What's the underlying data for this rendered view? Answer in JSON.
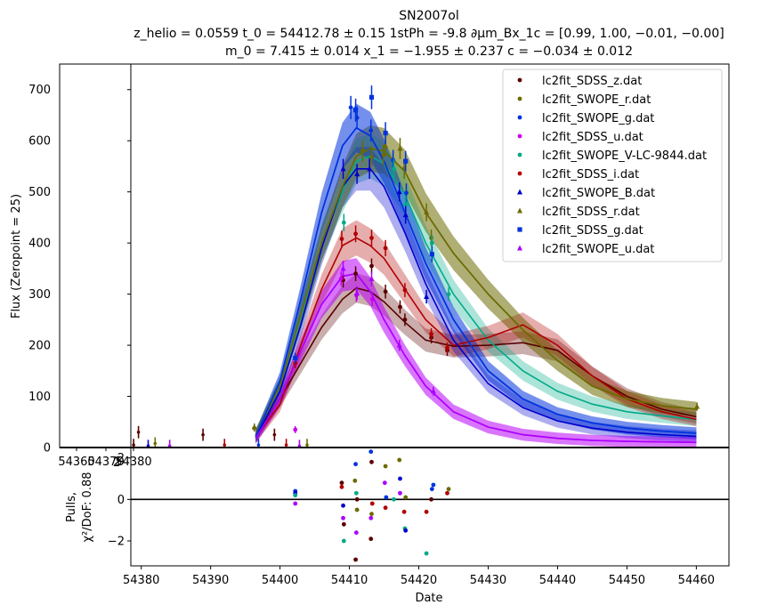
{
  "chart_data": [
    {
      "type": "line",
      "title": "SN2007ol",
      "subtitle_line1": "z_helio = 0.0559 t_0 = 54412.78 ± 0.15 1stPh = -9.8 ∂μm_Bx_1c = [0.99,  1.00,  −0.01,  −0.00]",
      "subtitle_line2": "m_0 = 7.415 ± 0.014 x_1 = −1.955 ± 0.237 c = −0.034 ± 0.012",
      "ylabel": "Flux (Zeropoint = 25)",
      "xlim": [
        54378.5,
        54464.7
      ],
      "ylim": [
        0,
        750
      ],
      "yticks": [
        0,
        100,
        200,
        300,
        400,
        500,
        600,
        700
      ],
      "grid": false,
      "legend_position": "top-right",
      "overlapping_inset_xticks": [
        "54360",
        "54370",
        "54380"
      ],
      "series": [
        {
          "name": "lc2fit_SDSS_z.dat",
          "color": "#5a0000",
          "marker": "circle",
          "x": [
            54409.1,
            54410.9,
            54413.2,
            54415.2,
            54417.3,
            54418.0,
            54421.8,
            54424.1
          ],
          "y": [
            327,
            340,
            355,
            305,
            275,
            250,
            215,
            190
          ],
          "model_x": [
            54396.5,
            54400,
            54403,
            54406,
            54409,
            54411,
            54413,
            54415,
            54418,
            54421,
            54425,
            54430,
            54435,
            54440,
            54445,
            54450,
            54455,
            54460
          ],
          "model_y": [
            22,
            95,
            165,
            235,
            290,
            312,
            305,
            285,
            245,
            210,
            198,
            200,
            205,
            190,
            140,
            100,
            75,
            60
          ]
        },
        {
          "name": "lc2fit_SWOPE_r.dat",
          "color": "#6b6b00",
          "marker": "circle",
          "x": [
            54396.3,
            54411.9,
            54414.9,
            54417.9,
            54421.8
          ],
          "y": [
            38,
            580,
            572,
            545,
            410
          ],
          "model_x": [
            54396.5,
            54400,
            54403,
            54406,
            54409,
            54411,
            54413,
            54415,
            54418,
            54421,
            54425,
            54430,
            54435,
            54440,
            54445,
            54450,
            54455,
            54460
          ],
          "model_y": [
            25,
            120,
            260,
            400,
            510,
            570,
            585,
            580,
            540,
            460,
            380,
            300,
            230,
            170,
            120,
            95,
            82,
            75
          ]
        },
        {
          "name": "lc2fit_SWOPE_g.dat",
          "color": "#0033dd",
          "marker": "circle",
          "x": [
            54410.2,
            54411.1,
            54413.1,
            54416.3,
            54418.2
          ],
          "y": [
            665,
            645,
            620,
            562,
            498
          ],
          "model_x": [
            54396.5,
            54400,
            54403,
            54406,
            54409,
            54411,
            54413,
            54415,
            54418,
            54421,
            54425,
            54430,
            54435,
            54440,
            54445,
            54450,
            54455,
            54460
          ],
          "model_y": [
            22,
            130,
            290,
            460,
            590,
            625,
            610,
            560,
            460,
            360,
            250,
            150,
            95,
            65,
            48,
            38,
            32,
            28
          ]
        },
        {
          "name": "lc2fit_SDSS_u.dat",
          "color": "#cc00ee",
          "marker": "circle",
          "x": [
            54402.2,
            54408.8,
            54411.0,
            54413.3
          ],
          "y": [
            35,
            330,
            298,
            290
          ],
          "model_x": [
            54396.5,
            54400,
            54403,
            54406,
            54409,
            54411,
            54413,
            54415,
            54418,
            54421,
            54425,
            54430,
            54435,
            54440,
            54445,
            54450,
            54455,
            54460
          ],
          "model_y": [
            18,
            95,
            190,
            280,
            335,
            340,
            305,
            250,
            180,
            120,
            70,
            40,
            25,
            18,
            14,
            12,
            11,
            10
          ]
        },
        {
          "name": "lc2fit_SWOPE_V-LC-9844.dat",
          "color": "#00aa88",
          "marker": "circle",
          "x": [
            54409.2,
            54416.4,
            54418.1,
            54421.9,
            54424.3
          ],
          "y": [
            440,
            545,
            475,
            400,
            300
          ],
          "model_x": [
            54396.5,
            54400,
            54403,
            54406,
            54409,
            54411,
            54413,
            54415,
            54418,
            54421,
            54425,
            54430,
            54435,
            54440,
            54445,
            54450,
            54455,
            54460
          ],
          "model_y": [
            24,
            120,
            255,
            400,
            500,
            560,
            570,
            555,
            495,
            400,
            300,
            210,
            150,
            110,
            85,
            70,
            62,
            55
          ]
        },
        {
          "name": "lc2fit_SDSS_i.dat",
          "color": "#b00000",
          "marker": "circle",
          "x": [
            54402.2,
            54408.9,
            54410.9,
            54413.2,
            54415.2,
            54418.0,
            54421.8,
            54424.1
          ],
          "y": [
            165,
            408,
            418,
            410,
            390,
            308,
            222,
            195
          ],
          "model_x": [
            54396.5,
            54400,
            54403,
            54406,
            54409,
            54411,
            54413,
            54415,
            54418,
            54421,
            54425,
            54430,
            54435,
            54440,
            54445,
            54450,
            54455,
            54460
          ],
          "model_y": [
            20,
            85,
            200,
            310,
            395,
            410,
            395,
            370,
            310,
            250,
            200,
            215,
            240,
            200,
            140,
            95,
            70,
            55
          ]
        },
        {
          "name": "lc2fit_SWOPE_B.dat",
          "color": "#0000cc",
          "marker": "triangle",
          "x": [
            54409.1,
            54411.1,
            54412.9,
            54417.2,
            54418.1,
            54421.1
          ],
          "y": [
            545,
            535,
            545,
            500,
            455,
            295
          ],
          "model_x": [
            54396.5,
            54400,
            54403,
            54406,
            54409,
            54411,
            54413,
            54415,
            54418,
            54421,
            54425,
            54430,
            54435,
            54440,
            54445,
            54450,
            54455,
            54460
          ],
          "model_y": [
            20,
            110,
            240,
            390,
            510,
            545,
            545,
            510,
            420,
            320,
            210,
            125,
            78,
            52,
            38,
            30,
            25,
            22
          ]
        },
        {
          "name": "lc2fit_SDSS_r.dat",
          "color": "#6b6b00",
          "marker": "triangle",
          "x": [
            54396.3,
            54413.2,
            54415.2,
            54417.3,
            54421.1,
            54460.1
          ],
          "y": [
            40,
            570,
            590,
            585,
            460,
            80
          ],
          "model_x": [
            54396.5,
            54400,
            54403,
            54406,
            54409,
            54411,
            54413,
            54415,
            54418,
            54421,
            54425,
            54430,
            54435,
            54440,
            54445,
            54450,
            54455,
            54460
          ],
          "model_y": [
            25,
            120,
            260,
            400,
            510,
            570,
            585,
            580,
            540,
            460,
            380,
            300,
            230,
            170,
            120,
            95,
            82,
            75
          ]
        },
        {
          "name": "lc2fit_SDSS_g.dat",
          "color": "#0033dd",
          "marker": "square",
          "x": [
            54402.2,
            54410.9,
            54413.2,
            54415.2,
            54418.1,
            54421.9
          ],
          "y": [
            175,
            660,
            685,
            615,
            560,
            378
          ],
          "model_x": [
            54396.5,
            54400,
            54403,
            54406,
            54409,
            54411,
            54413,
            54415,
            54418,
            54421,
            54425,
            54430,
            54435,
            54440,
            54445,
            54450,
            54455,
            54460
          ],
          "model_y": [
            22,
            130,
            290,
            460,
            590,
            625,
            610,
            560,
            460,
            360,
            250,
            150,
            95,
            65,
            48,
            38,
            32,
            28
          ]
        },
        {
          "name": "lc2fit_SWOPE_u.dat",
          "color": "#aa00ff",
          "marker": "triangle",
          "x": [
            54409.1,
            54411.1,
            54413.2,
            54417.2,
            54422.1
          ],
          "y": [
            350,
            302,
            330,
            200,
            110
          ],
          "model_x": [
            54396.5,
            54400,
            54403,
            54406,
            54409,
            54411,
            54413,
            54415,
            54418,
            54421,
            54425,
            54430,
            54435,
            54440,
            54445,
            54450,
            54455,
            54460
          ],
          "model_y": [
            18,
            95,
            190,
            280,
            335,
            340,
            305,
            250,
            180,
            120,
            70,
            40,
            25,
            18,
            14,
            12,
            11,
            10
          ]
        }
      ],
      "inset_points": {
        "x": [
          54378.9,
          54379.6,
          54381.0,
          54382.0,
          54384.1,
          54388.9,
          54392.0,
          54396.9,
          54399.2,
          54400.9,
          54402.8,
          54403.9
        ],
        "y": [
          5,
          30,
          3,
          8,
          3,
          25,
          5,
          5,
          25,
          5,
          3,
          5
        ],
        "colors": [
          "#5a0000",
          "#5a0000",
          "#0000cc",
          "#6b6b00",
          "#aa00ff",
          "#5a0000",
          "#b00000",
          "#0033dd",
          "#5a0000",
          "#b00000",
          "#aa00ff",
          "#6b6b00"
        ]
      }
    },
    {
      "type": "scatter",
      "xlabel": "Date",
      "ylabel_line1": "Pulls,",
      "ylabel_line2": "χ²/DoF: 0.88",
      "xlim": [
        54378.5,
        54464.7
      ],
      "ylim": [
        -3.2,
        2.5
      ],
      "yticks": [
        -2,
        0,
        2
      ],
      "xticks": [
        54380,
        54390,
        54400,
        54410,
        54420,
        54430,
        54440,
        54450,
        54460
      ],
      "xtick_labels": [
        "54380",
        "54390",
        "54400",
        "54410",
        "54420",
        "54430",
        "54440",
        "54450",
        "54460"
      ],
      "overlapping_tick_label": "2",
      "hline": 0,
      "points": {
        "x": [
          54402.2,
          54402.2,
          54402.2,
          54402.2,
          54408.9,
          54408.9,
          54409.1,
          54409.1,
          54409.2,
          54409.2,
          54410.8,
          54410.9,
          54411.0,
          54411.0,
          54411.1,
          54411.1,
          54413.1,
          54413.2,
          54413.2,
          54413.3,
          54413.1,
          54415.1,
          54415.2,
          54415.2,
          54415.3,
          54416.4,
          54417.2,
          54417.3,
          54417.3,
          54417.9,
          54418.0,
          54418.1,
          54418.1,
          54421.1,
          54421.1,
          54421.8,
          54421.9,
          54422.1,
          54424.1,
          54424.3,
          54413.1,
          54410.9
        ],
        "y": [
          0.4,
          0.3,
          -0.2,
          0.2,
          0.8,
          0.6,
          -0.3,
          -0.9,
          -2.0,
          -1.2,
          0.9,
          1.7,
          -1.6,
          0.3,
          0.0,
          -0.5,
          2.3,
          1.8,
          -0.7,
          -0.2,
          -1.9,
          0.8,
          1.6,
          -0.4,
          0.1,
          0.0,
          1.9,
          1.0,
          0.3,
          -0.6,
          -1.4,
          -1.5,
          0.1,
          -0.6,
          -2.6,
          0.0,
          0.5,
          0.7,
          0.3,
          0.5,
          -0.9,
          -2.9
        ],
        "colors": [
          "#0033dd",
          "#0000cc",
          "#aa00ff",
          "#00aa88",
          "#5a0000",
          "#b00000",
          "#0000cc",
          "#aa00ff",
          "#00aa88",
          "#5a0000",
          "#6b6b00",
          "#0033dd",
          "#aa00ff",
          "#00aa88",
          "#5a0000",
          "#6b6b00",
          "#0033dd",
          "#5a0000",
          "#6b6b00",
          "#b00000",
          "#5a0000",
          "#aa00ff",
          "#6b6b00",
          "#b00000",
          "#0033dd",
          "#00aa88",
          "#6b6b00",
          "#0000cc",
          "#aa00ff",
          "#b00000",
          "#00aa88",
          "#0000cc",
          "#6b6b00",
          "#b00000",
          "#00aa88",
          "#5a0000",
          "#0033dd",
          "#0033dd",
          "#b00000",
          "#6b6b00",
          "#aa00ff",
          "#5a0000"
        ]
      }
    }
  ]
}
